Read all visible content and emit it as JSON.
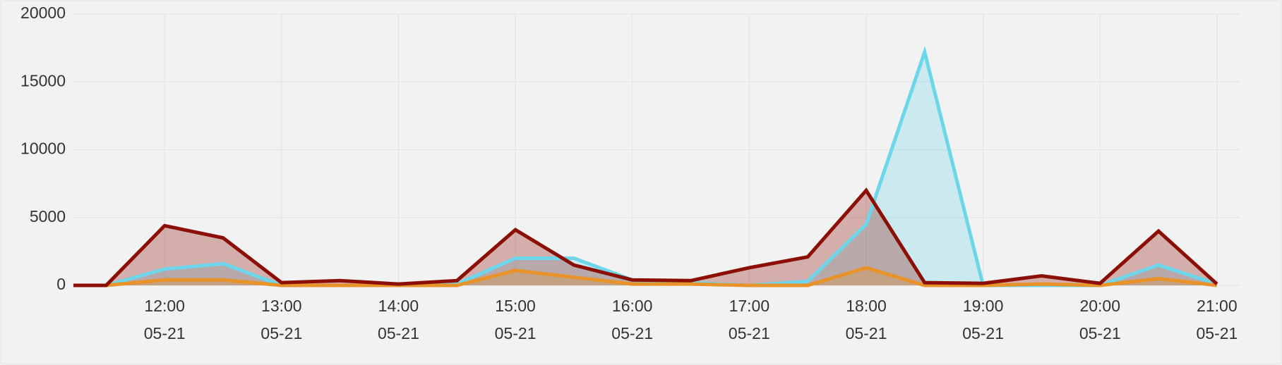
{
  "chart_data": {
    "type": "area",
    "x": [
      11.22,
      11.5,
      12,
      12.5,
      13,
      13.5,
      14,
      14.5,
      15,
      15.5,
      16,
      16.5,
      17,
      17.5,
      18,
      18.5,
      19,
      19.5,
      20,
      20.5,
      21
    ],
    "series": [
      {
        "color": "#6dd6ea",
        "values": [
          0,
          0,
          1200,
          1600,
          0,
          0,
          0,
          100,
          2000,
          2000,
          400,
          200,
          0,
          300,
          4500,
          17200,
          0,
          0,
          0,
          1500,
          100
        ]
      },
      {
        "color": "#8b0f05",
        "values": [
          0,
          0,
          4400,
          3500,
          200,
          350,
          100,
          350,
          4100,
          1500,
          400,
          350,
          1300,
          2100,
          7000,
          200,
          150,
          700,
          150,
          4000,
          100
        ]
      },
      {
        "color": "#e8922a",
        "values": [
          0,
          0,
          400,
          400,
          0,
          0,
          0,
          0,
          1100,
          600,
          100,
          100,
          0,
          0,
          1300,
          0,
          0,
          100,
          0,
          500,
          0
        ]
      }
    ],
    "xlim": [
      11.22,
      21.2
    ],
    "xticks": [
      {
        "value": 12,
        "label": "12:00",
        "sublabel": "05-21"
      },
      {
        "value": 13,
        "label": "13:00",
        "sublabel": "05-21"
      },
      {
        "value": 14,
        "label": "14:00",
        "sublabel": "05-21"
      },
      {
        "value": 15,
        "label": "15:00",
        "sublabel": "05-21"
      },
      {
        "value": 16,
        "label": "16:00",
        "sublabel": "05-21"
      },
      {
        "value": 17,
        "label": "17:00",
        "sublabel": "05-21"
      },
      {
        "value": 18,
        "label": "18:00",
        "sublabel": "05-21"
      },
      {
        "value": 19,
        "label": "19:00",
        "sublabel": "05-21"
      },
      {
        "value": 20,
        "label": "20:00",
        "sublabel": "05-21"
      },
      {
        "value": 21,
        "label": "21:00",
        "sublabel": "05-21"
      }
    ],
    "ylim": [
      0,
      20000
    ],
    "yticks": [
      0,
      5000,
      10000,
      15000,
      20000
    ],
    "grid": true
  }
}
